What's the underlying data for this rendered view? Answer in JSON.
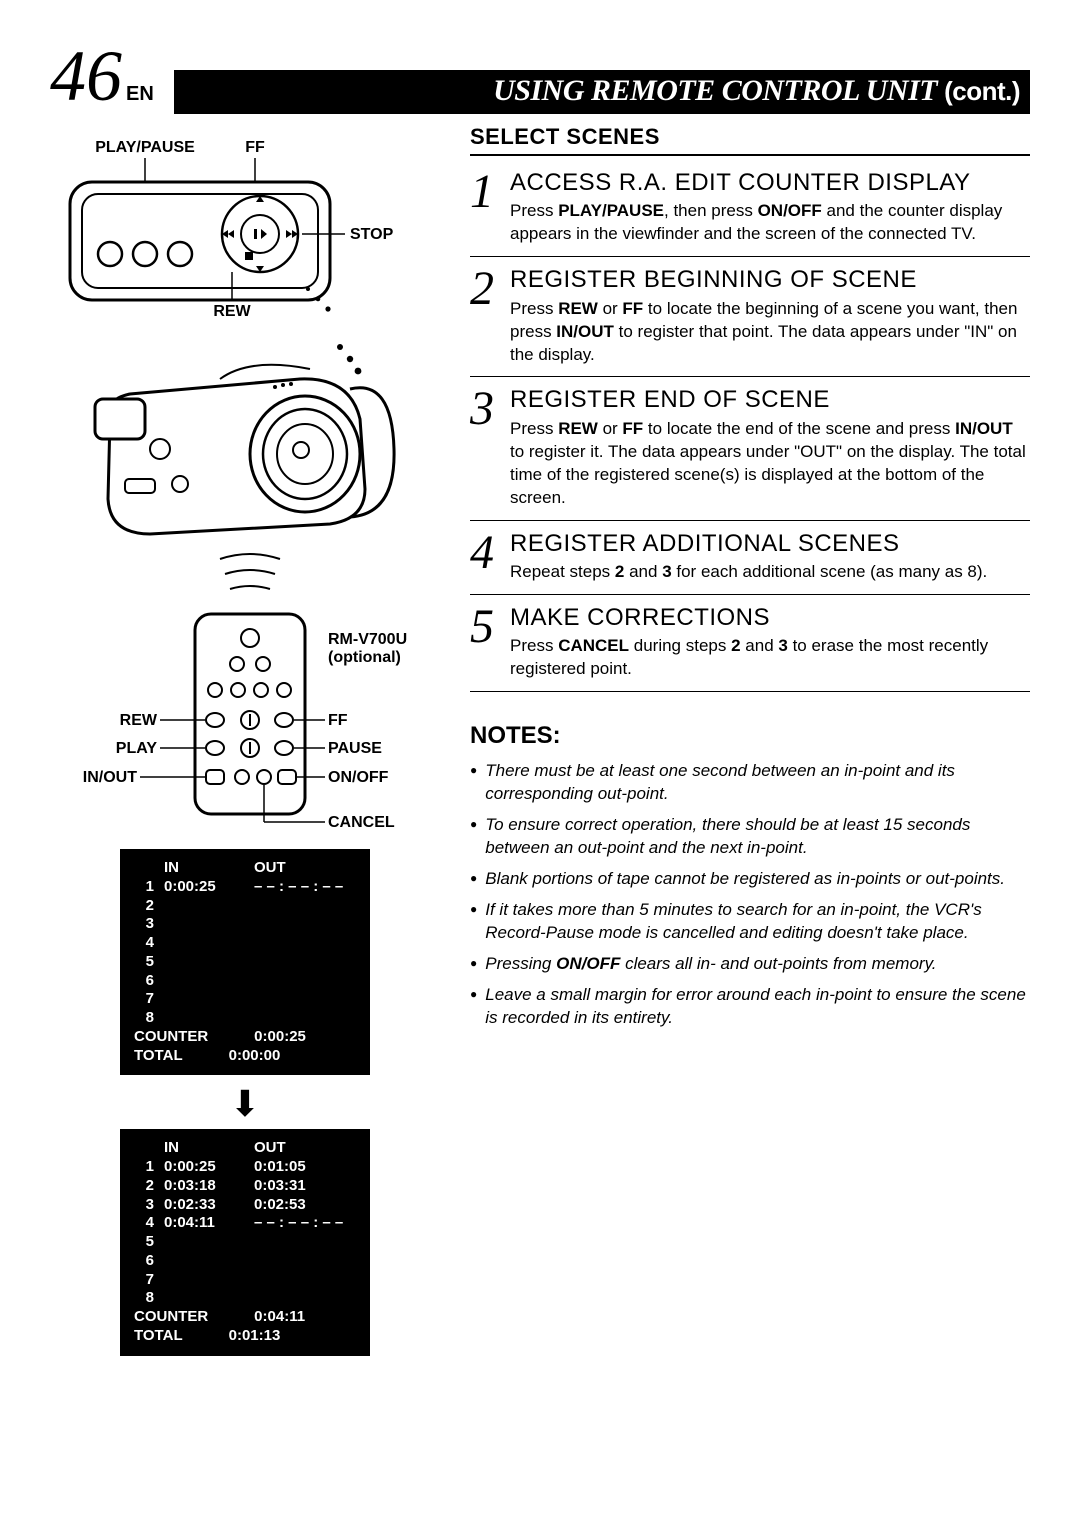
{
  "page": {
    "number": "46",
    "lang": "EN",
    "title_main": "USING REMOTE CONTROL UNIT",
    "title_cont": "(cont.)"
  },
  "diagram_labels": {
    "play_pause": "PLAY/PAUSE",
    "ff_top": "FF",
    "stop": "STOP",
    "rew_top": "REW",
    "remote_model": "RM-V700U",
    "remote_optional": "(optional)",
    "rew": "REW",
    "ff": "FF",
    "play": "PLAY",
    "pause": "PAUSE",
    "in_out": "IN/OUT",
    "on_off": "ON/OFF",
    "cancel": "CANCEL"
  },
  "section_heading": "SELECT SCENES",
  "steps": [
    {
      "num": "1",
      "title": "ACCESS R.A. EDIT COUNTER DISPLAY",
      "html": "Press <b>PLAY/PAUSE</b>, then press <b>ON/OFF</b> and the counter display appears in the viewfinder and the screen of the connected TV."
    },
    {
      "num": "2",
      "title": "REGISTER BEGINNING OF SCENE",
      "html": "Press <b>REW</b> or <b>FF</b> to locate the beginning of a scene you want, then press <b>IN/OUT</b> to register that point. The data appears under \"IN\" on the display."
    },
    {
      "num": "3",
      "title": "REGISTER END OF SCENE",
      "html": "Press <b>REW</b> or <b>FF</b> to locate the end of the scene and press <b>IN/OUT</b> to register it. The data appears under \"OUT\" on the display. The total time of the registered scene(s) is displayed at the bottom of the screen."
    },
    {
      "num": "4",
      "title": "REGISTER ADDITIONAL SCENES",
      "html": "Repeat steps <b>2</b> and <b>3</b> for each additional scene (as many as 8)."
    },
    {
      "num": "5",
      "title": "MAKE CORRECTIONS",
      "html": "Press <b>CANCEL</b> during steps <b>2</b> and <b>3</b> to erase the most recently registered point."
    }
  ],
  "notes_heading": "NOTES:",
  "notes": [
    "There must be at least one second between an in-point and its corresponding out-point.",
    "To ensure correct operation, there should be at least 15 seconds between an out-point and the next in-point.",
    "Blank portions of tape cannot be registered as in-points or out-points.",
    "If it takes more than 5 minutes to search for an in-point, the VCR's Record-Pause mode is cancelled and editing doesn't take place.",
    "Pressing <b>ON/OFF</b> clears all in- and out-points from memory.",
    "Leave a small margin for error around each in-point to ensure the scene is recorded in its entirety."
  ],
  "counter1": {
    "header_in": "IN",
    "header_out": "OUT",
    "rows": [
      {
        "n": "1",
        "in": "0:00:25",
        "out": "– – : – – : – –"
      },
      {
        "n": "2",
        "in": "",
        "out": ""
      },
      {
        "n": "3",
        "in": "",
        "out": ""
      },
      {
        "n": "4",
        "in": "",
        "out": ""
      },
      {
        "n": "5",
        "in": "",
        "out": ""
      },
      {
        "n": "6",
        "in": "",
        "out": ""
      },
      {
        "n": "7",
        "in": "",
        "out": ""
      },
      {
        "n": "8",
        "in": "",
        "out": ""
      }
    ],
    "counter_label": "COUNTER",
    "counter_val": "0:00:25",
    "total_label": "TOTAL",
    "total_val": "0:00:00"
  },
  "counter2": {
    "header_in": "IN",
    "header_out": "OUT",
    "rows": [
      {
        "n": "1",
        "in": "0:00:25",
        "out": "0:01:05"
      },
      {
        "n": "2",
        "in": "0:03:18",
        "out": "0:03:31"
      },
      {
        "n": "3",
        "in": "0:02:33",
        "out": "0:02:53"
      },
      {
        "n": "4",
        "in": "0:04:11",
        "out": "– – : – – : – –"
      },
      {
        "n": "5",
        "in": "",
        "out": ""
      },
      {
        "n": "6",
        "in": "",
        "out": ""
      },
      {
        "n": "7",
        "in": "",
        "out": ""
      },
      {
        "n": "8",
        "in": "",
        "out": ""
      }
    ],
    "counter_label": "COUNTER",
    "counter_val": "0:04:11",
    "total_label": "TOTAL",
    "total_val": "0:01:13"
  },
  "colors": {
    "ink": "#000000",
    "paper": "#ffffff"
  }
}
